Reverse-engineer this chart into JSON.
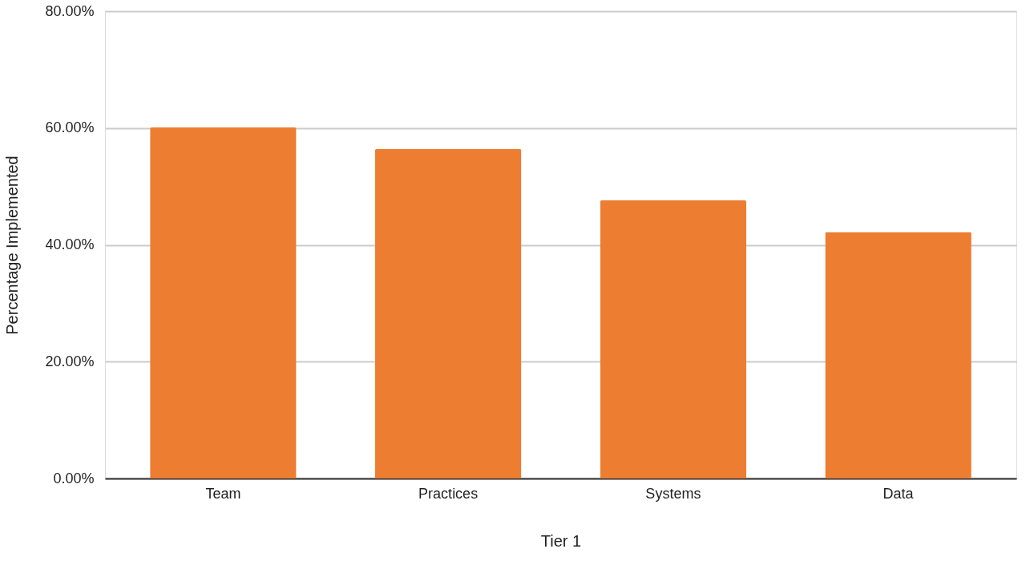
{
  "chart_data": {
    "type": "bar",
    "xlabel": "Tier 1",
    "ylabel": "Percentage Implemented",
    "categories": [
      "Team",
      "Practices",
      "Systems",
      "Data"
    ],
    "values": [
      60.1,
      56.4,
      47.6,
      42.2
    ],
    "color": "#ed7d31",
    "ylim": [
      0,
      80
    ],
    "yticks": [
      {
        "value": 0,
        "label": "0.00%"
      },
      {
        "value": 20,
        "label": "20.00%"
      },
      {
        "value": 40,
        "label": "40.00%"
      },
      {
        "value": 60,
        "label": "60.00%"
      },
      {
        "value": 80,
        "label": "80.00%"
      }
    ],
    "grid": "y"
  }
}
